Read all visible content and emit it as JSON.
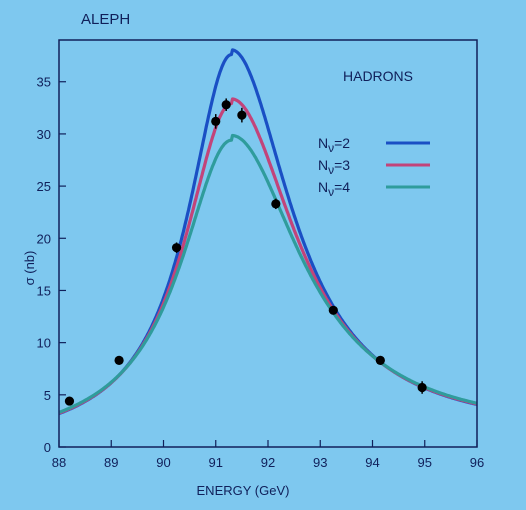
{
  "chart_data": {
    "type": "line",
    "experiment_label": "ALEPH",
    "annotation": "HADRONS",
    "xlabel": "ENERGY (GeV)",
    "ylabel": "σ (nb)",
    "xlim": [
      88,
      96
    ],
    "ylim": [
      0,
      39
    ],
    "x_ticks": [
      "88",
      "89",
      "90",
      "91",
      "92",
      "93",
      "94",
      "95",
      "96"
    ],
    "y_ticks": [
      "0",
      "5",
      "10",
      "15",
      "20",
      "25",
      "30",
      "35"
    ],
    "legend_position": "right",
    "series": [
      {
        "name": "Nν=2",
        "label_base": "N",
        "label_sub": "ν",
        "label_suffix": "=2",
        "color": "#1a4fc4",
        "peak": 37.3,
        "width": 2.35
      },
      {
        "name": "Nν=3",
        "label_base": "N",
        "label_sub": "ν",
        "label_suffix": "=3",
        "color": "#c2447a",
        "peak": 32.6,
        "width": 2.55
      },
      {
        "name": "Nν=4",
        "label_base": "N",
        "label_sub": "ν",
        "label_suffix": "=4",
        "color": "#2f9c9c",
        "peak": 29.1,
        "width": 2.75
      }
    ],
    "peak_energy": 91.3,
    "data_points": [
      {
        "x": 88.2,
        "y": 4.4,
        "err": 0.4
      },
      {
        "x": 89.15,
        "y": 8.3,
        "err": 0.4
      },
      {
        "x": 90.25,
        "y": 19.1,
        "err": 0.5
      },
      {
        "x": 91.0,
        "y": 31.2,
        "err": 0.7
      },
      {
        "x": 91.2,
        "y": 32.8,
        "err": 0.6
      },
      {
        "x": 91.5,
        "y": 31.8,
        "err": 0.7
      },
      {
        "x": 92.15,
        "y": 23.3,
        "err": 0.5
      },
      {
        "x": 93.25,
        "y": 13.1,
        "err": 0.4
      },
      {
        "x": 94.15,
        "y": 8.3,
        "err": 0.4
      },
      {
        "x": 94.95,
        "y": 5.7,
        "err": 0.6
      }
    ]
  }
}
